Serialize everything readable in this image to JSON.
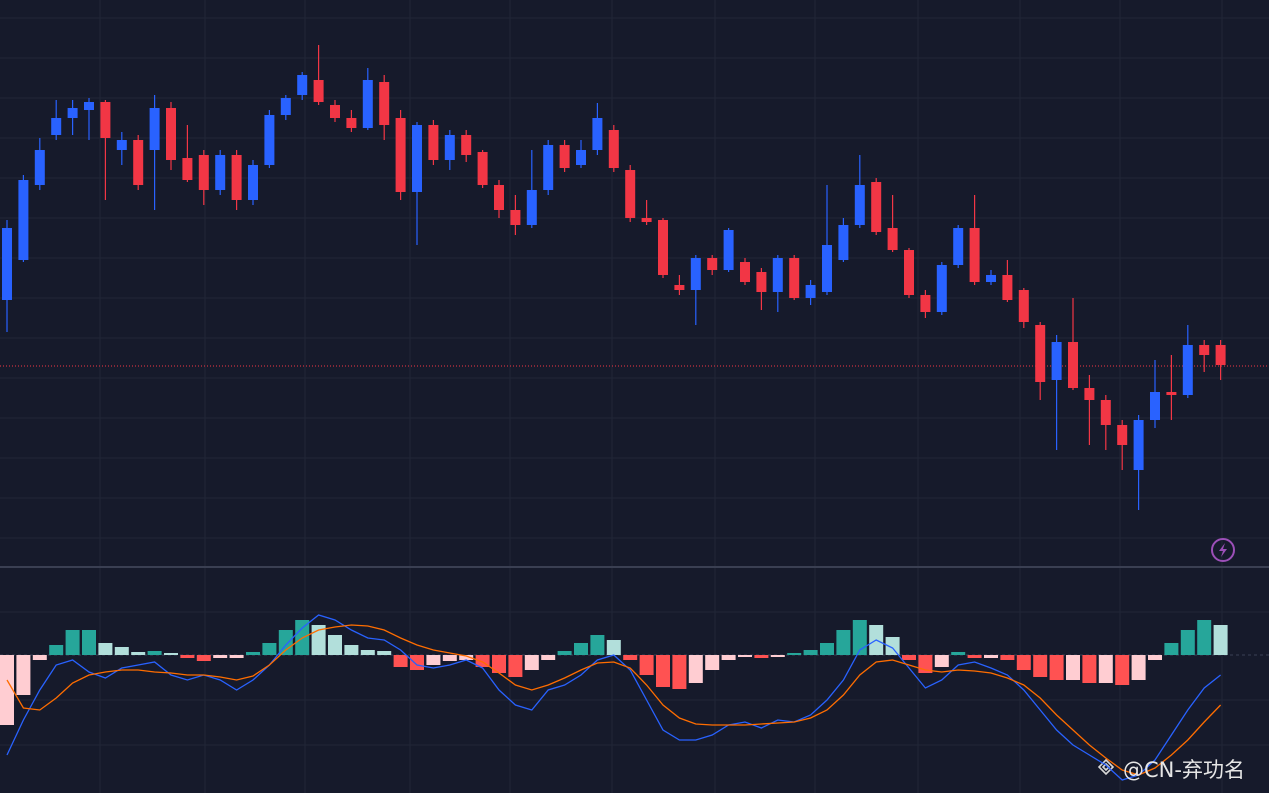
{
  "chart_data": [
    {
      "type": "candlestick",
      "ylim": [
        40,
        600
      ],
      "up_color": "#2962ff",
      "down_color": "#f23645",
      "price_line": 234,
      "price_line_color": "#f23645",
      "open": [
        300,
        340,
        415,
        465,
        482,
        490,
        498,
        450,
        460,
        450,
        492,
        442,
        445,
        410,
        445,
        400,
        435,
        485,
        505,
        520,
        495,
        482,
        472,
        518,
        482,
        408,
        475,
        440,
        465,
        448,
        415,
        390,
        375,
        410,
        455,
        435,
        450,
        470,
        430,
        382,
        380,
        315,
        310,
        342,
        330,
        338,
        328,
        308,
        342,
        302,
        308,
        340,
        375,
        418,
        372,
        350,
        305,
        288,
        335,
        372,
        318,
        325,
        310,
        275,
        220,
        258,
        212,
        200,
        175,
        130,
        180,
        208,
        205,
        255,
        255
      ],
      "high": [
        380,
        425,
        462,
        500,
        500,
        502,
        500,
        468,
        465,
        505,
        498,
        475,
        450,
        450,
        450,
        440,
        490,
        505,
        528,
        555,
        500,
        490,
        532,
        525,
        490,
        478,
        480,
        470,
        470,
        450,
        420,
        405,
        450,
        460,
        460,
        460,
        497,
        475,
        435,
        400,
        382,
        325,
        345,
        345,
        372,
        342,
        332,
        345,
        345,
        320,
        415,
        382,
        445,
        422,
        405,
        352,
        310,
        338,
        375,
        405,
        330,
        340,
        312,
        278,
        265,
        302,
        225,
        205,
        180,
        185,
        240,
        245,
        275,
        260,
        260
      ],
      "low": [
        268,
        338,
        410,
        460,
        465,
        460,
        400,
        435,
        410,
        390,
        430,
        418,
        395,
        405,
        390,
        395,
        432,
        480,
        500,
        495,
        478,
        468,
        470,
        460,
        400,
        355,
        435,
        430,
        438,
        412,
        382,
        365,
        372,
        405,
        428,
        432,
        445,
        428,
        378,
        375,
        322,
        305,
        275,
        325,
        328,
        315,
        290,
        288,
        300,
        295,
        305,
        338,
        372,
        365,
        348,
        302,
        282,
        285,
        332,
        315,
        315,
        298,
        272,
        200,
        150,
        210,
        155,
        150,
        130,
        90,
        172,
        180,
        202,
        228,
        220
      ],
      "close": [
        372,
        420,
        450,
        482,
        492,
        498,
        462,
        460,
        415,
        492,
        440,
        420,
        410,
        445,
        400,
        435,
        485,
        502,
        525,
        498,
        482,
        472,
        520,
        475,
        408,
        475,
        440,
        465,
        445,
        415,
        390,
        375,
        410,
        455,
        432,
        450,
        482,
        432,
        382,
        378,
        325,
        310,
        342,
        330,
        370,
        318,
        308,
        342,
        302,
        315,
        355,
        375,
        415,
        368,
        350,
        305,
        288,
        335,
        372,
        318,
        325,
        300,
        278,
        218,
        258,
        212,
        200,
        175,
        155,
        180,
        208,
        205,
        255,
        245,
        235
      ]
    },
    {
      "type": "macd",
      "ylim": [
        -138,
        85
      ],
      "histogram": {
        "up_strong": "#26a69a",
        "up_weak": "#b2dfdb",
        "down_strong": "#ff5252",
        "down_weak": "#ffcdd2",
        "values": [
          -70,
          -40,
          -5,
          10,
          25,
          25,
          12,
          8,
          3,
          4,
          2,
          -3,
          -6,
          -3,
          -3,
          3,
          12,
          25,
          35,
          30,
          20,
          10,
          5,
          4,
          -12,
          -15,
          -10,
          -6,
          -5,
          -12,
          -18,
          -22,
          -15,
          -5,
          4,
          12,
          20,
          15,
          -5,
          -20,
          -32,
          -34,
          -28,
          -15,
          -5,
          -2,
          -3,
          -2,
          2,
          5,
          12,
          25,
          35,
          30,
          18,
          -5,
          -18,
          -12,
          3,
          -3,
          -3,
          -5,
          -15,
          -22,
          -25,
          -25,
          -28,
          -28,
          -30,
          -25,
          -5,
          12,
          25,
          35,
          30
        ]
      },
      "series": [
        {
          "color": "#2962ff",
          "values": [
            -100,
            -65,
            -35,
            -10,
            -5,
            -17,
            -23,
            -13,
            -10,
            -7,
            -20,
            -25,
            -20,
            -25,
            -35,
            -25,
            -10,
            10,
            27,
            40,
            35,
            25,
            17,
            15,
            5,
            -10,
            -13,
            -10,
            -5,
            -13,
            -35,
            -50,
            -55,
            -35,
            -30,
            -20,
            -5,
            0,
            -15,
            -45,
            -75,
            -85,
            -85,
            -80,
            -70,
            -67,
            -73,
            -65,
            -67,
            -60,
            -45,
            -25,
            5,
            15,
            7,
            -13,
            -33,
            -25,
            -10,
            -7,
            -13,
            -20,
            -35,
            -55,
            -75,
            -90,
            -100,
            -110,
            -125,
            -120,
            -105,
            -80,
            -55,
            -33,
            -20
          ]
        },
        {
          "color": "#ff6d00",
          "values": [
            -25,
            -53,
            -55,
            -43,
            -28,
            -20,
            -17,
            -15,
            -15,
            -17,
            -18,
            -20,
            -20,
            -22,
            -25,
            -21,
            -10,
            5,
            17,
            25,
            28,
            30,
            29,
            25,
            17,
            10,
            5,
            2,
            -1,
            -7,
            -18,
            -30,
            -35,
            -30,
            -23,
            -15,
            -8,
            -7,
            -13,
            -30,
            -50,
            -63,
            -69,
            -70,
            -70,
            -70,
            -69,
            -68,
            -67,
            -63,
            -55,
            -40,
            -20,
            -7,
            -5,
            -10,
            -15,
            -17,
            -15,
            -16,
            -18,
            -23,
            -30,
            -43,
            -60,
            -75,
            -90,
            -103,
            -115,
            -120,
            -113,
            -100,
            -85,
            -67,
            -50
          ]
        }
      ]
    }
  ],
  "watermark": "@CN-弃功名"
}
